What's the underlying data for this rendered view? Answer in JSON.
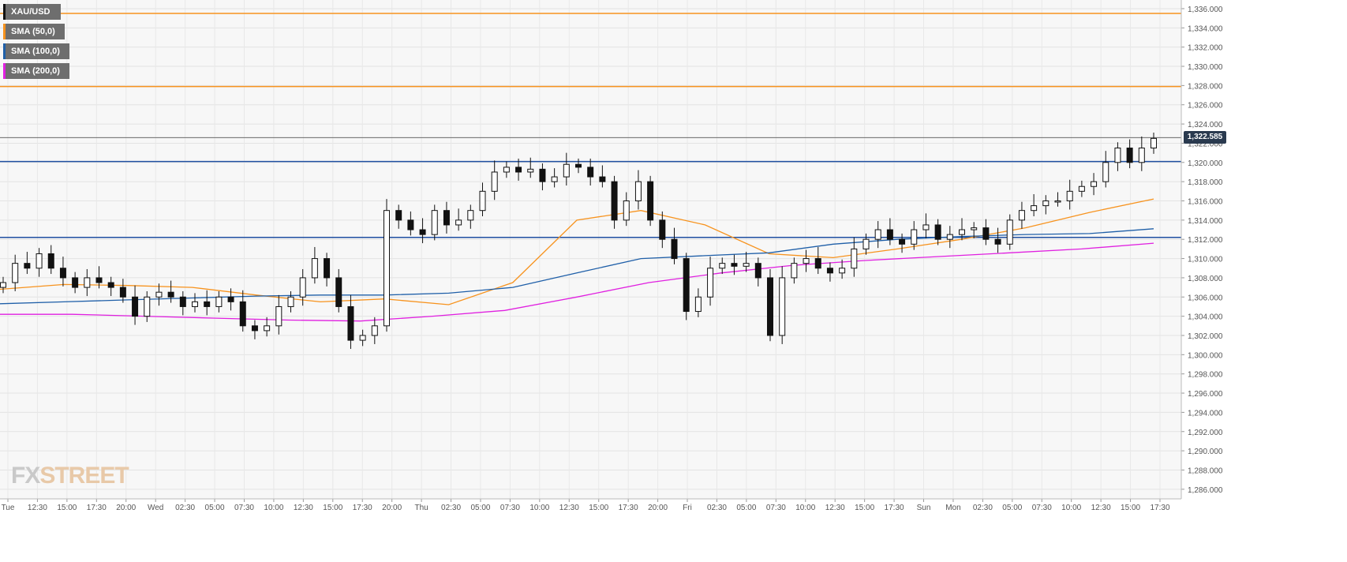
{
  "chart_data": {
    "type": "candlestick",
    "symbol": "XAU/USD",
    "ylim": [
      1285,
      1337
    ],
    "yticks": [
      "1,286.000",
      "1,288.000",
      "1,290.000",
      "1,292.000",
      "1,294.000",
      "1,296.000",
      "1,298.000",
      "1,300.000",
      "1,302.000",
      "1,304.000",
      "1,306.000",
      "1,308.000",
      "1,310.000",
      "1,312.000",
      "1,314.000",
      "1,316.000",
      "1,318.000",
      "1,320.000",
      "1,322.000",
      "1,324.000",
      "1,326.000",
      "1,328.000",
      "1,330.000",
      "1,332.000",
      "1,334.000",
      "1,336.000"
    ],
    "xticks": [
      "Tue",
      "12:30",
      "15:00",
      "17:30",
      "20:00",
      "Wed",
      "02:30",
      "05:00",
      "07:30",
      "10:00",
      "12:30",
      "15:00",
      "17:30",
      "20:00",
      "Thu",
      "02:30",
      "05:00",
      "07:30",
      "10:00",
      "12:30",
      "15:00",
      "17:30",
      "20:00",
      "Fri",
      "02:30",
      "05:00",
      "07:30",
      "10:00",
      "12:30",
      "15:00",
      "17:30",
      "Sun",
      "Mon",
      "02:30",
      "05:00",
      "07:30",
      "10:00",
      "12:30",
      "15:00",
      "17:30"
    ],
    "current_price": 1322.585,
    "current_price_label": "1,322.585",
    "resistance_lines": [
      1335.5,
      1327.9
    ],
    "support_lines": [
      1320.1,
      1312.2
    ],
    "legend": [
      {
        "label": "XAU/USD",
        "color": "#000000"
      },
      {
        "label": "SMA (50,0)",
        "color": "#f7931e"
      },
      {
        "label": "SMA (100,0)",
        "color": "#1f5fa8"
      },
      {
        "label": "SMA (200,0)",
        "color": "#e020e0"
      }
    ],
    "price_path": [
      1307.5,
      1309.5,
      1309,
      1310.5,
      1309,
      1308,
      1307,
      1308,
      1307.5,
      1307,
      1306,
      1304,
      1306,
      1306.5,
      1306,
      1305,
      1305.5,
      1305,
      1306,
      1305.5,
      1303,
      1302.5,
      1303,
      1305,
      1306,
      1308,
      1310,
      1308,
      1305,
      1301.5,
      1302,
      1303,
      1315,
      1314,
      1313,
      1312.5,
      1315,
      1313.5,
      1314,
      1315,
      1317,
      1319,
      1319.5,
      1319,
      1319.3,
      1318,
      1318.5,
      1319.8,
      1319.5,
      1318.5,
      1318,
      1314,
      1316,
      1318,
      1314,
      1312,
      1310,
      1304.5,
      1306,
      1309,
      1309.5,
      1309.2,
      1309.5,
      1308,
      1302,
      1308,
      1309.5,
      1310,
      1309,
      1308.5,
      1309,
      1311,
      1312,
      1313,
      1312,
      1311.5,
      1313,
      1313.5,
      1312,
      1312.5,
      1313,
      1313.2,
      1312,
      1311.5,
      1314,
      1315,
      1315.5,
      1316,
      1316,
      1317,
      1317.5,
      1318,
      1320,
      1321.5,
      1320,
      1321.5,
      1322.5
    ],
    "sma50_path": [
      1306.8,
      1307.3,
      1307.2,
      1307.0,
      1306.2,
      1305.5,
      1305.8,
      1305.2,
      1307.5,
      1314.0,
      1315.0,
      1313.5,
      1310.5,
      1310.1,
      1311.0,
      1312.0,
      1313.2,
      1314.8,
      1316.2
    ],
    "sma100_path": [
      1305.3,
      1305.5,
      1305.7,
      1305.9,
      1306.1,
      1306.2,
      1306.2,
      1306.4,
      1307.0,
      1308.5,
      1310.0,
      1310.3,
      1310.6,
      1311.5,
      1312.0,
      1312.3,
      1312.5,
      1312.6,
      1313.1
    ],
    "sma200_path": [
      1304.2,
      1304.2,
      1304.0,
      1303.8,
      1303.6,
      1303.5,
      1304.0,
      1304.6,
      1306.0,
      1307.5,
      1308.5,
      1309.3,
      1309.8,
      1310.2,
      1310.6,
      1311.0,
      1311.6
    ],
    "watermark": {
      "fx": "FX",
      "street": "STREET"
    }
  }
}
